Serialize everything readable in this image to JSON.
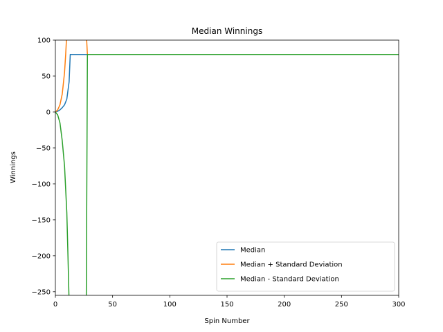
{
  "chart_data": {
    "type": "line",
    "title": "Median Winnings",
    "xlabel": "Spin Number",
    "ylabel": "Winnings",
    "xlim": [
      0,
      300
    ],
    "ylim": [
      -255,
      100
    ],
    "grid": false,
    "legend_position": "lower-right",
    "x_ticks": [
      0,
      50,
      100,
      150,
      200,
      250,
      300
    ],
    "x_tick_labels": [
      "0",
      "50",
      "100",
      "150",
      "200",
      "250",
      "300"
    ],
    "y_ticks": [
      100,
      50,
      0,
      -50,
      -100,
      -150,
      -200,
      -250
    ],
    "y_tick_labels": [
      "100",
      "50",
      "0",
      "−50",
      "−100",
      "−150",
      "−200",
      "−250"
    ],
    "series": [
      {
        "name": "Median",
        "color": "#1f77b4",
        "points": [
          [
            0,
            0
          ],
          [
            2,
            1
          ],
          [
            4,
            3
          ],
          [
            6,
            6
          ],
          [
            8,
            10
          ],
          [
            10,
            18
          ],
          [
            12,
            42
          ],
          [
            13,
            80
          ],
          [
            300,
            80
          ]
        ]
      },
      {
        "name": "Median + Standard Deviation",
        "color": "#ff7f0e",
        "points": [
          [
            0,
            0
          ],
          [
            2,
            3
          ],
          [
            4,
            10
          ],
          [
            6,
            25
          ],
          [
            8,
            55
          ],
          [
            9,
            80
          ],
          [
            10,
            110
          ],
          [
            27,
            110
          ],
          [
            28,
            80
          ],
          [
            300,
            80
          ]
        ]
      },
      {
        "name": "Median - Standard Deviation",
        "color": "#2ca02c",
        "points": [
          [
            0,
            0
          ],
          [
            2,
            -4
          ],
          [
            4,
            -15
          ],
          [
            6,
            -40
          ],
          [
            8,
            -75
          ],
          [
            10,
            -140
          ],
          [
            11,
            -200
          ],
          [
            12,
            -265
          ],
          [
            27,
            -265
          ],
          [
            28,
            80
          ],
          [
            300,
            80
          ]
        ]
      }
    ]
  }
}
